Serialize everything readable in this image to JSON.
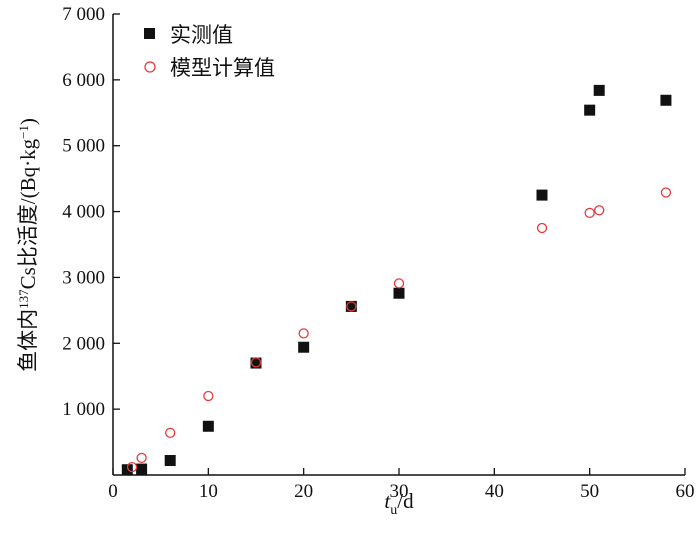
{
  "chart_data": {
    "type": "scatter",
    "xlabel": {
      "main": "t",
      "sub": "u",
      "unit": "/d"
    },
    "ylabel": {
      "prefix": "鱼体内",
      "sup": "137",
      "middle": "Cs比活度/(Bq·kg",
      "sup2": "−1",
      "suffix": ")"
    },
    "xlim": [
      0,
      60
    ],
    "ylim": [
      0,
      7000
    ],
    "x_ticks": [
      {
        "value": 0,
        "label": "0"
      },
      {
        "value": 10,
        "label": "10"
      },
      {
        "value": 20,
        "label": "20"
      },
      {
        "value": 30,
        "label": "30"
      },
      {
        "value": 40,
        "label": "40"
      },
      {
        "value": 50,
        "label": "50"
      },
      {
        "value": 60,
        "label": "60"
      }
    ],
    "y_ticks": [
      {
        "value": 1000,
        "label": "1 000"
      },
      {
        "value": 2000,
        "label": "2 000"
      },
      {
        "value": 3000,
        "label": "3 000"
      },
      {
        "value": 4000,
        "label": "4 000"
      },
      {
        "value": 5000,
        "label": "5 000"
      },
      {
        "value": 6000,
        "label": "6 000"
      },
      {
        "value": 7000,
        "label": "7 000"
      }
    ],
    "grid": false,
    "legend_position": "top-left",
    "series": [
      {
        "name": "实测值",
        "marker": "filled-square",
        "color": "#111111",
        "x": [
          1.5,
          3,
          6,
          10,
          15,
          20,
          25,
          30,
          45,
          50,
          51,
          58
        ],
        "y": [
          80,
          90,
          220,
          740,
          1700,
          1940,
          2560,
          2760,
          4250,
          5540,
          5840,
          5690
        ]
      },
      {
        "name": "模型计算值",
        "marker": "open-circle",
        "color": "#e8383a",
        "x": [
          2,
          3,
          6,
          10,
          15,
          20,
          25,
          30,
          45,
          50,
          51,
          58
        ],
        "y": [
          120,
          260,
          640,
          1200,
          1710,
          2150,
          2560,
          2910,
          3750,
          3980,
          4020,
          4290
        ]
      }
    ]
  }
}
